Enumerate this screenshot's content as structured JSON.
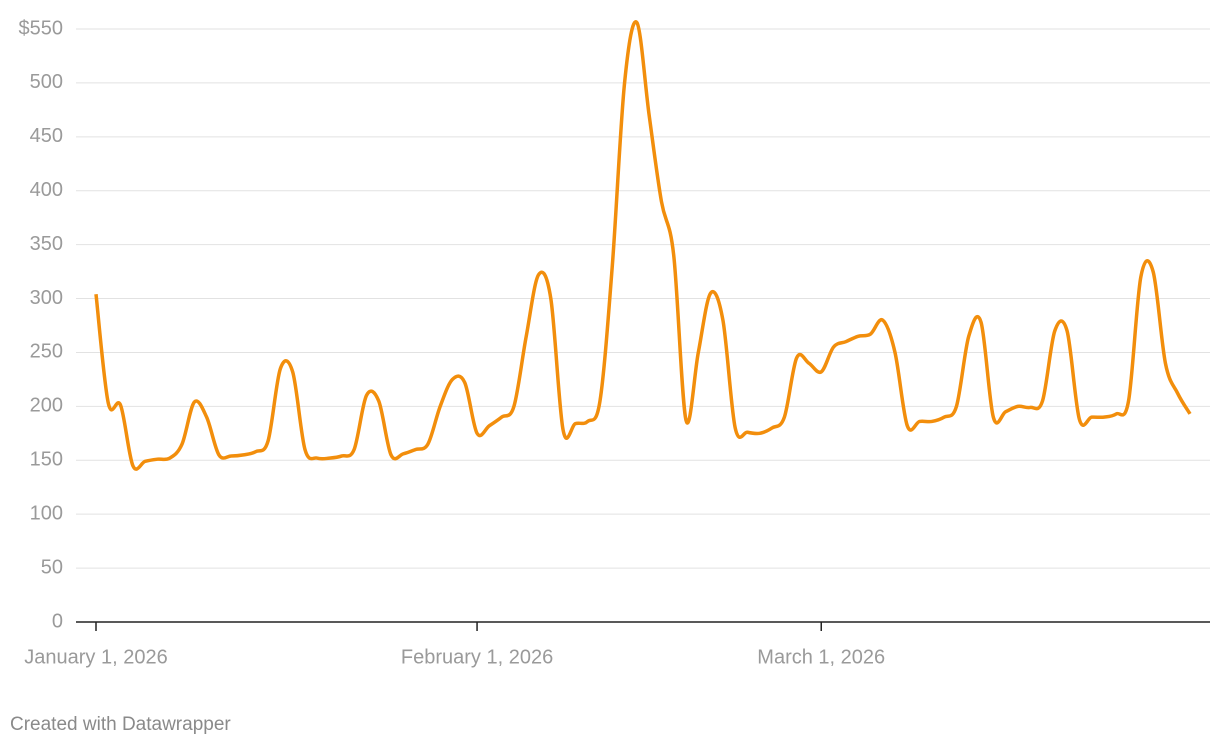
{
  "chart_data": {
    "type": "line",
    "x": [
      "2026-01-01",
      "2026-01-02",
      "2026-01-03",
      "2026-01-04",
      "2026-01-05",
      "2026-01-06",
      "2026-01-07",
      "2026-01-08",
      "2026-01-09",
      "2026-01-10",
      "2026-01-11",
      "2026-01-12",
      "2026-01-13",
      "2026-01-14",
      "2026-01-15",
      "2026-01-16",
      "2026-01-17",
      "2026-01-18",
      "2026-01-19",
      "2026-01-20",
      "2026-01-21",
      "2026-01-22",
      "2026-01-23",
      "2026-01-24",
      "2026-01-25",
      "2026-01-26",
      "2026-01-27",
      "2026-01-28",
      "2026-01-29",
      "2026-01-30",
      "2026-01-31",
      "2026-02-01",
      "2026-02-02",
      "2026-02-03",
      "2026-02-04",
      "2026-02-05",
      "2026-02-06",
      "2026-02-07",
      "2026-02-08",
      "2026-02-09",
      "2026-02-10",
      "2026-02-11",
      "2026-02-12",
      "2026-02-13",
      "2026-02-14",
      "2026-02-15",
      "2026-02-16",
      "2026-02-17",
      "2026-02-18",
      "2026-02-19",
      "2026-02-20",
      "2026-02-21",
      "2026-02-22",
      "2026-02-23",
      "2026-02-24",
      "2026-02-25",
      "2026-02-26",
      "2026-02-27",
      "2026-02-28",
      "2026-03-01",
      "2026-03-02",
      "2026-03-03",
      "2026-03-04",
      "2026-03-05",
      "2026-03-06",
      "2026-03-07",
      "2026-03-08",
      "2026-03-09",
      "2026-03-10",
      "2026-03-11",
      "2026-03-12",
      "2026-03-13",
      "2026-03-14",
      "2026-03-15",
      "2026-03-16",
      "2026-03-17",
      "2026-03-18",
      "2026-03-19",
      "2026-03-20",
      "2026-03-21",
      "2026-03-22",
      "2026-03-23",
      "2026-03-24",
      "2026-03-25",
      "2026-03-26",
      "2026-03-27",
      "2026-03-28",
      "2026-03-29",
      "2026-03-30",
      "2026-03-31"
    ],
    "values": [
      304,
      203,
      201,
      145,
      149,
      151,
      152,
      165,
      204,
      190,
      155,
      154,
      155,
      158,
      168,
      235,
      232,
      160,
      152,
      152,
      154,
      160,
      210,
      205,
      155,
      156,
      160,
      165,
      200,
      225,
      222,
      175,
      182,
      190,
      200,
      265,
      322,
      300,
      178,
      184,
      186,
      205,
      330,
      500,
      556,
      470,
      390,
      340,
      187,
      250,
      305,
      280,
      180,
      176,
      175,
      180,
      190,
      245,
      240,
      232,
      255,
      260,
      265,
      267,
      280,
      250,
      182,
      186,
      186,
      190,
      200,
      265,
      278,
      190,
      195,
      200,
      199,
      205,
      270,
      270,
      188,
      190,
      190,
      193,
      205,
      320,
      325,
      240,
      212,
      193
    ],
    "color": "#f28e0c",
    "ylim": [
      0,
      550
    ],
    "yticks": [
      0,
      50,
      100,
      150,
      200,
      250,
      300,
      350,
      400,
      450,
      500,
      {
        "value": 550,
        "label": "$550"
      }
    ],
    "xticks": [
      {
        "value": "2026-01-01",
        "label": "January 1, 2026"
      },
      {
        "value": "2026-02-01",
        "label": "February 1, 2026"
      },
      {
        "value": "2026-03-01",
        "label": "March 1, 2026"
      }
    ],
    "grid": true,
    "credit": "Created with Datawrapper"
  }
}
